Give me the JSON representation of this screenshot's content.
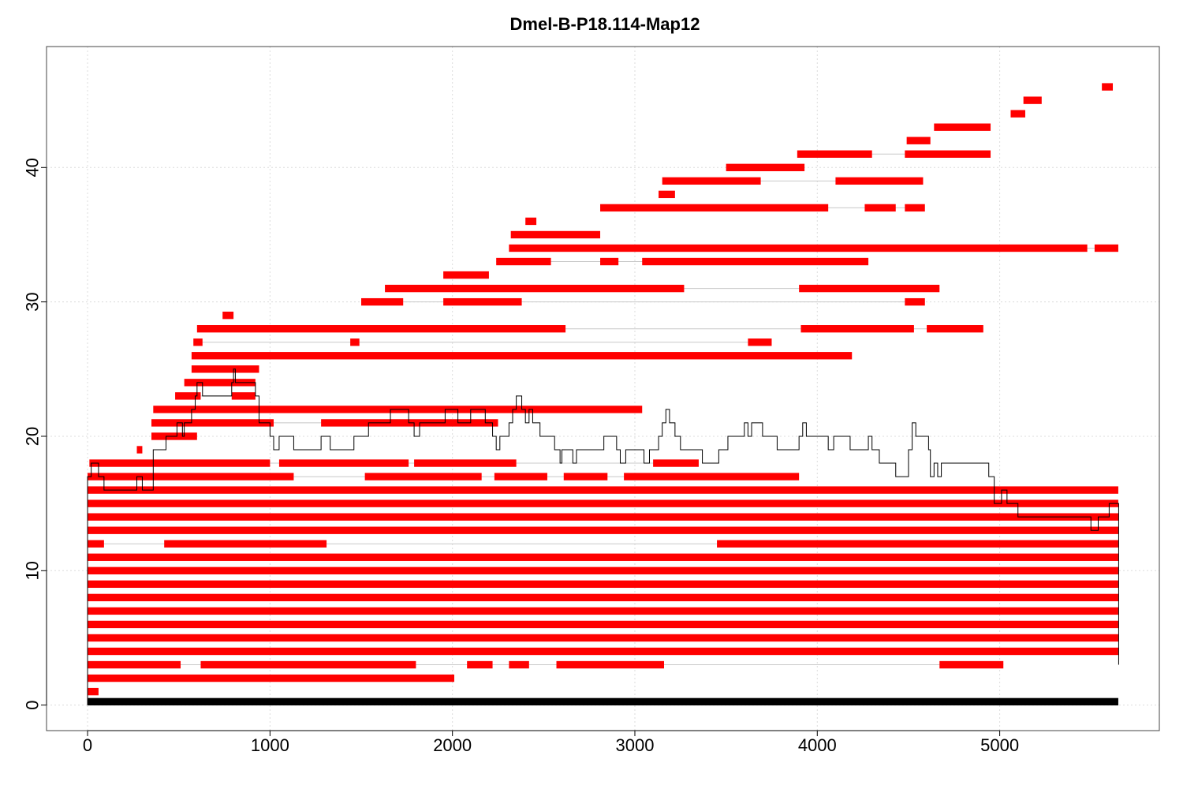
{
  "chart_data": {
    "type": "segment-map",
    "title": "Dmel-B-P18.114-Map12",
    "xlabel": "",
    "ylabel": "",
    "xlim": [
      -225,
      5875
    ],
    "ylim": [
      -1.9,
      49
    ],
    "x_ticks": [
      0,
      1000,
      2000,
      3000,
      4000,
      5000
    ],
    "y_ticks": [
      0,
      10,
      20,
      30,
      40
    ],
    "grid": true,
    "colors": {
      "segment": "#ff0000",
      "reference": "#000000",
      "coverage": "#000000",
      "link": "#c8c8c8",
      "grid": "#dcdcdc"
    },
    "reference_bar": {
      "y": 0.25,
      "x0": 0,
      "x1": 5650
    },
    "rows": [
      {
        "y": 1,
        "segments": [
          [
            0,
            60
          ]
        ]
      },
      {
        "y": 2,
        "segments": [
          [
            0,
            2010
          ]
        ]
      },
      {
        "y": 3,
        "segments": [
          [
            0,
            510
          ],
          [
            620,
            1800
          ],
          [
            2080,
            2220
          ],
          [
            2310,
            2420
          ],
          [
            2570,
            3160
          ],
          [
            4670,
            5020
          ]
        ]
      },
      {
        "y": 4,
        "segments": [
          [
            0,
            5650
          ]
        ]
      },
      {
        "y": 5,
        "segments": [
          [
            0,
            5650
          ]
        ]
      },
      {
        "y": 6,
        "segments": [
          [
            0,
            5650
          ]
        ]
      },
      {
        "y": 7,
        "segments": [
          [
            0,
            5650
          ]
        ]
      },
      {
        "y": 8,
        "segments": [
          [
            0,
            5650
          ]
        ]
      },
      {
        "y": 9,
        "segments": [
          [
            0,
            5650
          ]
        ]
      },
      {
        "y": 10,
        "segments": [
          [
            0,
            5650
          ]
        ]
      },
      {
        "y": 11,
        "segments": [
          [
            0,
            5650
          ]
        ]
      },
      {
        "y": 12,
        "segments": [
          [
            0,
            90
          ],
          [
            420,
            1310
          ],
          [
            3450,
            5650
          ]
        ]
      },
      {
        "y": 13,
        "segments": [
          [
            0,
            5650
          ]
        ]
      },
      {
        "y": 14,
        "segments": [
          [
            0,
            5650
          ]
        ]
      },
      {
        "y": 15,
        "segments": [
          [
            0,
            5650
          ]
        ]
      },
      {
        "y": 16,
        "segments": [
          [
            0,
            5650
          ]
        ]
      },
      {
        "y": 17,
        "segments": [
          [
            0,
            1130
          ],
          [
            1520,
            2160
          ],
          [
            2230,
            2520
          ],
          [
            2610,
            2850
          ],
          [
            2940,
            3900
          ]
        ]
      },
      {
        "y": 18,
        "segments": [
          [
            10,
            1000
          ],
          [
            1050,
            1760
          ],
          [
            1790,
            2350
          ],
          [
            3100,
            3350
          ]
        ]
      },
      {
        "y": 19,
        "segments": [
          [
            270,
            300
          ]
        ]
      },
      {
        "y": 20,
        "segments": [
          [
            350,
            600
          ]
        ]
      },
      {
        "y": 21,
        "segments": [
          [
            350,
            1020
          ],
          [
            1280,
            2250
          ]
        ]
      },
      {
        "y": 22,
        "segments": [
          [
            360,
            3040
          ]
        ]
      },
      {
        "y": 23,
        "segments": [
          [
            480,
            620
          ],
          [
            790,
            920
          ]
        ]
      },
      {
        "y": 24,
        "segments": [
          [
            530,
            920
          ]
        ]
      },
      {
        "y": 25,
        "segments": [
          [
            570,
            940
          ]
        ]
      },
      {
        "y": 26,
        "segments": [
          [
            570,
            4190
          ]
        ]
      },
      {
        "y": 27,
        "segments": [
          [
            580,
            630
          ],
          [
            1440,
            1490
          ],
          [
            3620,
            3750
          ]
        ]
      },
      {
        "y": 28,
        "segments": [
          [
            600,
            2620
          ],
          [
            3910,
            4530
          ],
          [
            4600,
            4910
          ]
        ]
      },
      {
        "y": 29,
        "segments": [
          [
            740,
            800
          ]
        ]
      },
      {
        "y": 30,
        "segments": [
          [
            1500,
            1730
          ],
          [
            1950,
            2380
          ],
          [
            4480,
            4590
          ]
        ]
      },
      {
        "y": 31,
        "segments": [
          [
            1630,
            3270
          ],
          [
            3900,
            4670
          ]
        ]
      },
      {
        "y": 32,
        "segments": [
          [
            1950,
            2200
          ]
        ]
      },
      {
        "y": 33,
        "segments": [
          [
            2240,
            2540
          ],
          [
            2810,
            2910
          ],
          [
            3040,
            4280
          ]
        ]
      },
      {
        "y": 34,
        "segments": [
          [
            2310,
            5480
          ],
          [
            5520,
            5650
          ]
        ]
      },
      {
        "y": 35,
        "segments": [
          [
            2320,
            2810
          ]
        ]
      },
      {
        "y": 36,
        "segments": [
          [
            2400,
            2460
          ]
        ]
      },
      {
        "y": 37,
        "segments": [
          [
            2810,
            4060
          ],
          [
            4260,
            4430
          ],
          [
            4480,
            4590
          ]
        ]
      },
      {
        "y": 38,
        "segments": [
          [
            3130,
            3220
          ]
        ]
      },
      {
        "y": 39,
        "segments": [
          [
            3150,
            3690
          ],
          [
            4100,
            4580
          ]
        ]
      },
      {
        "y": 40,
        "segments": [
          [
            3500,
            3930
          ]
        ]
      },
      {
        "y": 41,
        "segments": [
          [
            3890,
            4300
          ],
          [
            4480,
            4950
          ]
        ]
      },
      {
        "y": 42,
        "segments": [
          [
            4490,
            4620
          ]
        ]
      },
      {
        "y": 43,
        "segments": [
          [
            4640,
            4950
          ]
        ]
      },
      {
        "y": 44,
        "segments": [
          [
            5060,
            5140
          ]
        ]
      },
      {
        "y": 45,
        "segments": [
          [
            5130,
            5230
          ]
        ]
      },
      {
        "y": 46,
        "segments": [
          [
            5560,
            5620
          ]
        ]
      }
    ],
    "coverage": [
      [
        0,
        17
      ],
      [
        20,
        18
      ],
      [
        60,
        17
      ],
      [
        90,
        16
      ],
      [
        260,
        16
      ],
      [
        270,
        17
      ],
      [
        300,
        16
      ],
      [
        350,
        16
      ],
      [
        360,
        19
      ],
      [
        420,
        19
      ],
      [
        430,
        20
      ],
      [
        480,
        20
      ],
      [
        490,
        21
      ],
      [
        520,
        20
      ],
      [
        530,
        21
      ],
      [
        560,
        21
      ],
      [
        570,
        22
      ],
      [
        590,
        23
      ],
      [
        600,
        24
      ],
      [
        630,
        23
      ],
      [
        780,
        23
      ],
      [
        790,
        24
      ],
      [
        800,
        25
      ],
      [
        810,
        24
      ],
      [
        900,
        24
      ],
      [
        920,
        23
      ],
      [
        940,
        21
      ],
      [
        1000,
        20
      ],
      [
        1020,
        19
      ],
      [
        1050,
        20
      ],
      [
        1100,
        20
      ],
      [
        1130,
        19
      ],
      [
        1250,
        19
      ],
      [
        1280,
        20
      ],
      [
        1320,
        20
      ],
      [
        1330,
        19
      ],
      [
        1440,
        19
      ],
      [
        1460,
        20
      ],
      [
        1520,
        20
      ],
      [
        1540,
        21
      ],
      [
        1640,
        21
      ],
      [
        1660,
        22
      ],
      [
        1740,
        22
      ],
      [
        1760,
        21
      ],
      [
        1790,
        20
      ],
      [
        1820,
        21
      ],
      [
        1940,
        21
      ],
      [
        1960,
        22
      ],
      [
        2010,
        22
      ],
      [
        2030,
        21
      ],
      [
        2080,
        21
      ],
      [
        2100,
        22
      ],
      [
        2160,
        22
      ],
      [
        2180,
        21
      ],
      [
        2200,
        21
      ],
      [
        2220,
        20
      ],
      [
        2240,
        19
      ],
      [
        2260,
        20
      ],
      [
        2310,
        21
      ],
      [
        2330,
        22
      ],
      [
        2350,
        23
      ],
      [
        2380,
        22
      ],
      [
        2400,
        21
      ],
      [
        2420,
        22
      ],
      [
        2440,
        21
      ],
      [
        2480,
        20
      ],
      [
        2540,
        20
      ],
      [
        2560,
        19
      ],
      [
        2590,
        18
      ],
      [
        2600,
        19
      ],
      [
        2630,
        19
      ],
      [
        2660,
        18
      ],
      [
        2680,
        19
      ],
      [
        2810,
        19
      ],
      [
        2830,
        20
      ],
      [
        2880,
        20
      ],
      [
        2900,
        19
      ],
      [
        2920,
        18
      ],
      [
        2950,
        19
      ],
      [
        3030,
        19
      ],
      [
        3050,
        18
      ],
      [
        3080,
        19
      ],
      [
        3120,
        19
      ],
      [
        3130,
        20
      ],
      [
        3150,
        21
      ],
      [
        3170,
        22
      ],
      [
        3190,
        21
      ],
      [
        3220,
        20
      ],
      [
        3250,
        19
      ],
      [
        3350,
        19
      ],
      [
        3370,
        18
      ],
      [
        3440,
        18
      ],
      [
        3460,
        19
      ],
      [
        3490,
        19
      ],
      [
        3510,
        20
      ],
      [
        3580,
        20
      ],
      [
        3600,
        21
      ],
      [
        3620,
        20
      ],
      [
        3640,
        21
      ],
      [
        3690,
        21
      ],
      [
        3700,
        20
      ],
      [
        3760,
        20
      ],
      [
        3780,
        19
      ],
      [
        3880,
        19
      ],
      [
        3900,
        20
      ],
      [
        3920,
        21
      ],
      [
        3940,
        20
      ],
      [
        4040,
        20
      ],
      [
        4060,
        19
      ],
      [
        4090,
        20
      ],
      [
        4160,
        20
      ],
      [
        4180,
        19
      ],
      [
        4260,
        19
      ],
      [
        4280,
        20
      ],
      [
        4300,
        19
      ],
      [
        4340,
        18
      ],
      [
        4420,
        18
      ],
      [
        4430,
        17
      ],
      [
        4480,
        17
      ],
      [
        4500,
        19
      ],
      [
        4520,
        21
      ],
      [
        4540,
        20
      ],
      [
        4590,
        20
      ],
      [
        4610,
        19
      ],
      [
        4620,
        17
      ],
      [
        4640,
        18
      ],
      [
        4660,
        17
      ],
      [
        4680,
        18
      ],
      [
        4910,
        18
      ],
      [
        4940,
        17
      ],
      [
        4970,
        15
      ],
      [
        5000,
        15
      ],
      [
        5010,
        16
      ],
      [
        5040,
        15
      ],
      [
        5080,
        15
      ],
      [
        5100,
        14
      ],
      [
        5480,
        14
      ],
      [
        5500,
        13
      ],
      [
        5540,
        14
      ],
      [
        5590,
        14
      ],
      [
        5600,
        15
      ],
      [
        5650,
        15
      ],
      [
        5652,
        3
      ]
    ]
  }
}
